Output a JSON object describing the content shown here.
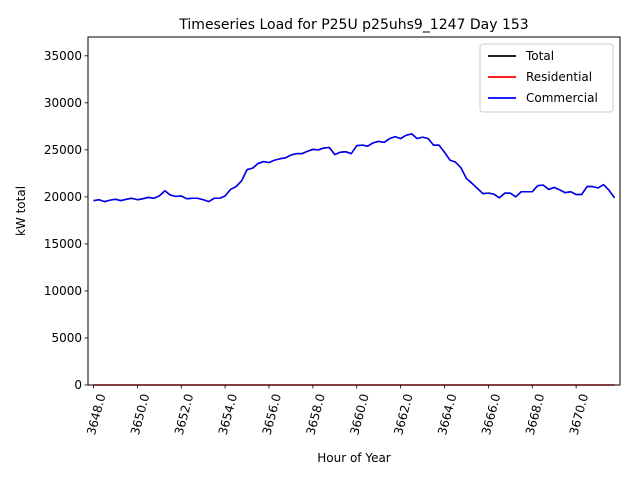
{
  "chart_data": {
    "type": "line",
    "title": "Timeseries Load for P25U p25uhs9_1247  Day 153",
    "xlabel": "Hour of Year",
    "ylabel": "kW total",
    "xlim": [
      3647.75,
      3672.0
    ],
    "ylim": [
      0,
      37000
    ],
    "x_ticks": [
      3648,
      3650,
      3652,
      3654,
      3656,
      3658,
      3660,
      3662,
      3664,
      3666,
      3668,
      3670
    ],
    "x_tick_labels": [
      "3648.0",
      "3650.0",
      "3652.0",
      "3654.0",
      "3656.0",
      "3658.0",
      "3660.0",
      "3662.0",
      "3664.0",
      "3666.0",
      "3668.0",
      "3670.0"
    ],
    "y_ticks": [
      0,
      5000,
      10000,
      15000,
      20000,
      25000,
      30000,
      35000
    ],
    "y_tick_labels": [
      "0",
      "5000",
      "10000",
      "15000",
      "20000",
      "25000",
      "30000",
      "35000"
    ],
    "legend_position": "top-right",
    "x": [
      3648.0,
      3648.25,
      3648.5,
      3648.75,
      3649.0,
      3649.25,
      3649.5,
      3649.75,
      3650.0,
      3650.25,
      3650.5,
      3650.75,
      3651.0,
      3651.25,
      3651.5,
      3651.75,
      3652.0,
      3652.25,
      3652.5,
      3652.75,
      3653.0,
      3653.25,
      3653.5,
      3653.75,
      3654.0,
      3654.25,
      3654.5,
      3654.75,
      3655.0,
      3655.25,
      3655.5,
      3655.75,
      3656.0,
      3656.25,
      3656.5,
      3656.75,
      3657.0,
      3657.25,
      3657.5,
      3657.75,
      3658.0,
      3658.25,
      3658.5,
      3658.75,
      3659.0,
      3659.25,
      3659.5,
      3659.75,
      3660.0,
      3660.25,
      3660.5,
      3660.75,
      3661.0,
      3661.25,
      3661.5,
      3661.75,
      3662.0,
      3662.25,
      3662.5,
      3662.75,
      3663.0,
      3663.25,
      3663.5,
      3663.75,
      3664.0,
      3664.25,
      3664.5,
      3664.75,
      3665.0,
      3665.25,
      3665.5,
      3665.75,
      3666.0,
      3666.25,
      3666.5,
      3666.75,
      3667.0,
      3667.25,
      3667.5,
      3667.75,
      3668.0,
      3668.25,
      3668.5,
      3668.75,
      3669.0,
      3669.25,
      3669.5,
      3669.75,
      3670.0,
      3670.25,
      3670.5,
      3670.75,
      3671.0,
      3671.25,
      3671.5,
      3671.75
    ],
    "series": [
      {
        "name": "Total",
        "color": "#000000",
        "values": [
          19600,
          19700,
          19500,
          19650,
          19750,
          19600,
          19750,
          19850,
          19700,
          19800,
          19950,
          19850,
          20100,
          20650,
          20200,
          20050,
          20100,
          19800,
          19850,
          19850,
          19700,
          19500,
          19850,
          19850,
          20100,
          20800,
          21100,
          21700,
          22900,
          23050,
          23550,
          23750,
          23650,
          23900,
          24050,
          24150,
          24450,
          24600,
          24600,
          24850,
          25050,
          25000,
          25200,
          25250,
          24500,
          24750,
          24800,
          24600,
          25450,
          25500,
          25400,
          25750,
          25900,
          25800,
          26200,
          26400,
          26200,
          26550,
          26700,
          26200,
          26350,
          26200,
          25500,
          25500,
          24750,
          23900,
          23700,
          23100,
          21950,
          21450,
          20900,
          20350,
          20400,
          20300,
          19900,
          20400,
          20400,
          20000,
          20550,
          20550,
          20550,
          21200,
          21250,
          20800,
          21000,
          20750,
          20450,
          20550,
          20250,
          20250,
          21100,
          21100,
          20950,
          21300,
          20700,
          19900
        ]
      },
      {
        "name": "Residential",
        "color": "#ff0000",
        "values": [
          0,
          0,
          0,
          0,
          0,
          0,
          0,
          0,
          0,
          0,
          0,
          0,
          0,
          0,
          0,
          0,
          0,
          0,
          0,
          0,
          0,
          0,
          0,
          0,
          0,
          0,
          0,
          0,
          0,
          0,
          0,
          0,
          0,
          0,
          0,
          0,
          0,
          0,
          0,
          0,
          0,
          0,
          0,
          0,
          0,
          0,
          0,
          0,
          0,
          0,
          0,
          0,
          0,
          0,
          0,
          0,
          0,
          0,
          0,
          0,
          0,
          0,
          0,
          0,
          0,
          0,
          0,
          0,
          0,
          0,
          0,
          0,
          0,
          0,
          0,
          0,
          0,
          0,
          0,
          0,
          0,
          0,
          0,
          0,
          0,
          0,
          0,
          0,
          0,
          0,
          0,
          0,
          0,
          0,
          0,
          0
        ]
      },
      {
        "name": "Commercial",
        "color": "#0000ff",
        "values": [
          19600,
          19700,
          19500,
          19650,
          19750,
          19600,
          19750,
          19850,
          19700,
          19800,
          19950,
          19850,
          20100,
          20650,
          20200,
          20050,
          20100,
          19800,
          19850,
          19850,
          19700,
          19500,
          19850,
          19850,
          20100,
          20800,
          21100,
          21700,
          22900,
          23050,
          23550,
          23750,
          23650,
          23900,
          24050,
          24150,
          24450,
          24600,
          24600,
          24850,
          25050,
          25000,
          25200,
          25250,
          24500,
          24750,
          24800,
          24600,
          25450,
          25500,
          25400,
          25750,
          25900,
          25800,
          26200,
          26400,
          26200,
          26550,
          26700,
          26200,
          26350,
          26200,
          25500,
          25500,
          24750,
          23900,
          23700,
          23100,
          21950,
          21450,
          20900,
          20350,
          20400,
          20300,
          19900,
          20400,
          20400,
          20000,
          20550,
          20550,
          20550,
          21200,
          21250,
          20800,
          21000,
          20750,
          20450,
          20550,
          20250,
          20250,
          21100,
          21100,
          20950,
          21300,
          20700,
          19900
        ]
      }
    ]
  }
}
